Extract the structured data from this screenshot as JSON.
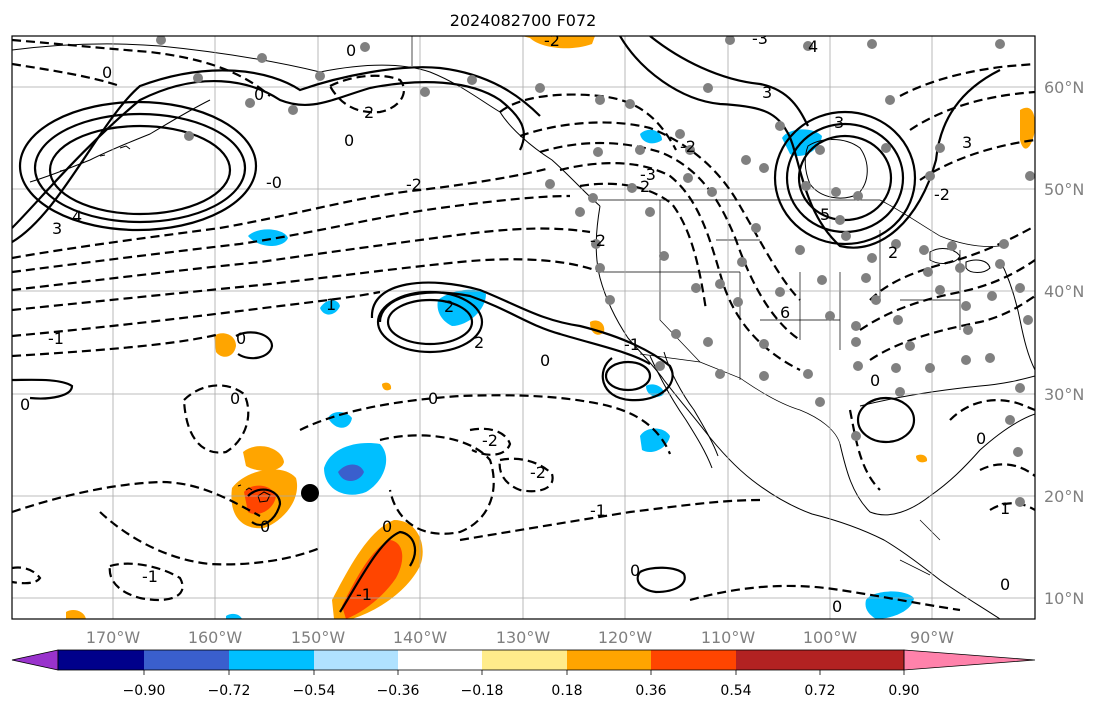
{
  "title": "2024082700 F072",
  "x_axis": {
    "tick_labels": [
      "170°W",
      "160°W",
      "150°W",
      "140°W",
      "130°W",
      "120°W",
      "110°W",
      "100°W",
      "90°W"
    ]
  },
  "y_axis": {
    "tick_labels": [
      "60°N",
      "50°N",
      "40°N",
      "30°N",
      "20°N",
      "10°N"
    ]
  },
  "contour_labels": [
    "0",
    "0",
    "2",
    "0",
    "-2",
    "-0",
    "3",
    "4",
    "-3",
    "-2",
    "3",
    "3",
    "4",
    "-3",
    "-2",
    "5",
    "3",
    "2",
    "-2",
    "1",
    "2",
    "-2",
    "-1",
    "0",
    "-1",
    "0",
    "0",
    "0",
    "2",
    "-2",
    "2",
    "-2",
    "-1",
    "0",
    "-1",
    "1",
    "0",
    "0",
    "0",
    "0",
    "-1",
    "0",
    "0",
    "0",
    "6",
    "0"
  ],
  "colorbar": {
    "ticks": [
      "−0.90",
      "−0.72",
      "−0.54",
      "−0.36",
      "−0.18",
      "0.18",
      "0.36",
      "0.54",
      "0.72",
      "0.90"
    ],
    "colors": [
      "#9932cc",
      "#00008b",
      "#3a5fcd",
      "#00bfff",
      "#b0e2ff",
      "#ffffff",
      "#ffec8b",
      "#ffa500",
      "#ff4500",
      "#b22222",
      "#ff82ab"
    ]
  },
  "colors": {
    "grid": "#a9a9a9",
    "station_dot": "#808080",
    "marker": "#000000"
  }
}
